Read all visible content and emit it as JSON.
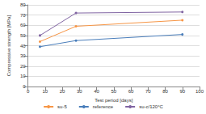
{
  "chart_data": {
    "type": "line",
    "x_label": "Test period [days]",
    "y_label": "Compressive strength [MPa]",
    "x": [
      7,
      28,
      90
    ],
    "series": [
      {
        "name": "su-5",
        "color": "#f79646",
        "values": [
          44,
          59,
          65
        ]
      },
      {
        "name": "reference",
        "color": "#4a7ebb",
        "values": [
          39,
          45,
          51
        ]
      },
      {
        "name": "su-c/120°C",
        "color": "#8064a2",
        "values": [
          50,
          72,
          73
        ]
      }
    ],
    "xlim": [
      0,
      100
    ],
    "xticks": [
      0,
      10,
      20,
      30,
      40,
      50,
      60,
      70,
      80,
      90,
      100
    ],
    "ylim": [
      0,
      80
    ],
    "yticks": [
      0,
      10,
      20,
      30,
      40,
      50,
      60,
      70,
      80
    ],
    "grid": true,
    "legend": "bottom"
  }
}
